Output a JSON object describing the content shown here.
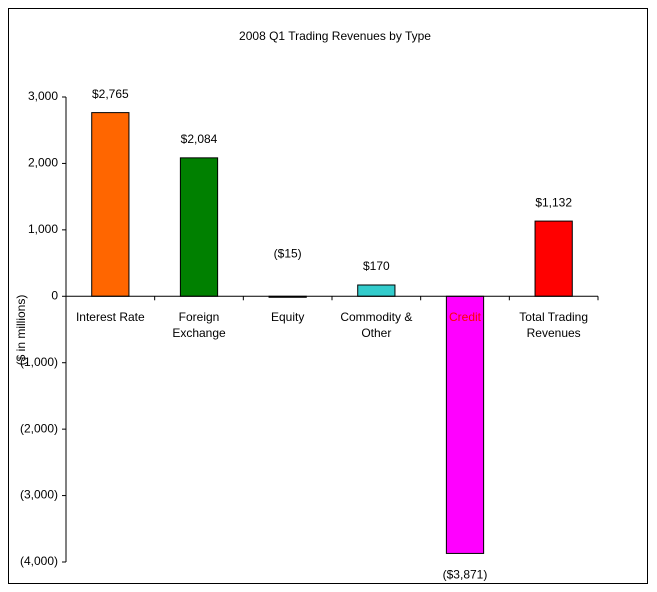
{
  "chart_data": {
    "type": "bar",
    "title": "2008 Q1 Trading Revenues by Type",
    "y_label": "($ in millions)",
    "categories": [
      "Interest Rate",
      "Foreign Exchange",
      "Equity",
      "Commodity & Other",
      "Credit",
      "Total Trading Revenues"
    ],
    "values": [
      2765,
      2084,
      -15,
      170,
      -3871,
      1132
    ],
    "value_labels": [
      "$2,765",
      "$2,084",
      "($15)",
      "$170",
      "($3,871)",
      "$1,132"
    ],
    "colors": [
      "#ff6600",
      "#008000",
      "#1a1a1a",
      "#33cccc",
      "#ff00ff",
      "#ff0000"
    ],
    "negative_label_color": "#ff0000",
    "ylim": [
      -4000,
      3000
    ],
    "yticks": [
      {
        "value": -4000,
        "label": "(4,000)"
      },
      {
        "value": -3000,
        "label": "(3,000)"
      },
      {
        "value": -2000,
        "label": "(2,000)"
      },
      {
        "value": -1000,
        "label": "(1,000)"
      },
      0,
      {
        "value": 1000,
        "label": "1,000"
      },
      {
        "value": 2000,
        "label": "2,000"
      },
      {
        "value": 3000,
        "label": "3,000"
      }
    ],
    "grid": false
  }
}
